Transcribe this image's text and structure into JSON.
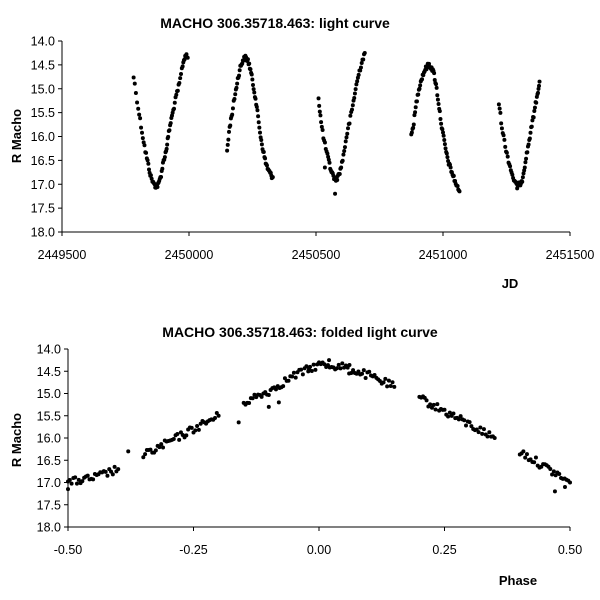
{
  "chart_data": [
    {
      "type": "scatter",
      "title": "MACHO 306.35718.463: light curve",
      "xlabel": "JD",
      "ylabel": "R Macho",
      "xlim": [
        2449500,
        2451500
      ],
      "ylim": [
        14.0,
        18.0
      ],
      "y_inverted": true,
      "grid": false,
      "legend": "none",
      "xticks": [
        "2449500",
        "2450000",
        "2450500",
        "2451000",
        "2451500"
      ],
      "yticks": [
        "14.0",
        "14.5",
        "15.0",
        "15.5",
        "16.0",
        "16.5",
        "17.0",
        "17.5",
        "18.0"
      ],
      "xtick_values": [
        2449500,
        2450000,
        2450500,
        2451000,
        2451500
      ],
      "ytick_values": [
        14.0,
        14.5,
        15.0,
        15.5,
        16.0,
        16.5,
        17.0,
        17.5,
        18.0
      ],
      "point_color": "#000000",
      "curve_points": [
        [
          2449782,
          14.75
        ],
        [
          2449800,
          15.4
        ],
        [
          2449815,
          15.9
        ],
        [
          2449828,
          16.3
        ],
        [
          2449840,
          16.6
        ],
        [
          2449850,
          16.85
        ],
        [
          2449862,
          17.0
        ],
        [
          2449872,
          17.05
        ],
        [
          2449880,
          17.0
        ],
        [
          2449890,
          16.8
        ],
        [
          2449900,
          16.5
        ],
        [
          2449910,
          16.3
        ],
        [
          2449918,
          16.0
        ],
        [
          2449928,
          15.7
        ],
        [
          2449938,
          15.45
        ],
        [
          2449950,
          15.15
        ],
        [
          2449962,
          14.9
        ],
        [
          2449975,
          14.5
        ],
        [
          2449985,
          14.3
        ],
        [
          2449995,
          14.35
        ],
        [
          2450150,
          16.3
        ],
        [
          2450160,
          15.8
        ],
        [
          2450170,
          15.5
        ],
        [
          2450182,
          15.1
        ],
        [
          2450192,
          14.8
        ],
        [
          2450202,
          14.55
        ],
        [
          2450212,
          14.4
        ],
        [
          2450222,
          14.35
        ],
        [
          2450232,
          14.4
        ],
        [
          2450242,
          14.6
        ],
        [
          2450252,
          14.9
        ],
        [
          2450262,
          15.2
        ],
        [
          2450272,
          15.6
        ],
        [
          2450282,
          16.0
        ],
        [
          2450292,
          16.3
        ],
        [
          2450302,
          16.55
        ],
        [
          2450312,
          16.7
        ],
        [
          2450322,
          16.8
        ],
        [
          2450330,
          16.85
        ],
        [
          2450510,
          15.2
        ],
        [
          2450520,
          15.7
        ],
        [
          2450532,
          16.1
        ],
        [
          2450545,
          16.4
        ],
        [
          2450556,
          16.65
        ],
        [
          2450566,
          16.8
        ],
        [
          2450576,
          16.9
        ],
        [
          2450586,
          16.85
        ],
        [
          2450596,
          16.7
        ],
        [
          2450608,
          16.4
        ],
        [
          2450620,
          16.0
        ],
        [
          2450632,
          15.7
        ],
        [
          2450645,
          15.35
        ],
        [
          2450656,
          15.0
        ],
        [
          2450668,
          14.7
        ],
        [
          2450680,
          14.45
        ],
        [
          2450692,
          14.25
        ],
        [
          2450875,
          16.0
        ],
        [
          2450885,
          15.7
        ],
        [
          2450895,
          15.3
        ],
        [
          2450905,
          15.0
        ],
        [
          2450915,
          14.8
        ],
        [
          2450925,
          14.65
        ],
        [
          2450935,
          14.55
        ],
        [
          2450945,
          14.5
        ],
        [
          2450955,
          14.55
        ],
        [
          2450965,
          14.7
        ],
        [
          2450975,
          15.0
        ],
        [
          2450985,
          15.4
        ],
        [
          2450995,
          15.8
        ],
        [
          2451005,
          16.1
        ],
        [
          2451015,
          16.4
        ],
        [
          2451025,
          16.6
        ],
        [
          2451035,
          16.75
        ],
        [
          2451045,
          16.9
        ],
        [
          2451055,
          17.05
        ],
        [
          2451065,
          17.15
        ],
        [
          2451220,
          15.3
        ],
        [
          2451232,
          15.8
        ],
        [
          2451245,
          16.2
        ],
        [
          2451258,
          16.5
        ],
        [
          2451270,
          16.75
        ],
        [
          2451282,
          16.95
        ],
        [
          2451292,
          17.05
        ],
        [
          2451302,
          17.0
        ],
        [
          2451312,
          16.9
        ],
        [
          2451322,
          16.6
        ],
        [
          2451332,
          16.3
        ],
        [
          2451342,
          16.0
        ],
        [
          2451352,
          15.7
        ],
        [
          2451362,
          15.4
        ],
        [
          2451372,
          15.1
        ],
        [
          2451380,
          14.85
        ]
      ],
      "outliers": [
        [
          2450575,
          17.2
        ],
        [
          2450535,
          16.65
        ],
        [
          2451305,
          17.0
        ]
      ]
    },
    {
      "type": "scatter",
      "title": "MACHO 306.35718.463: folded light curve",
      "xlabel": "Phase",
      "ylabel": "R Macho",
      "xlim": [
        -0.5,
        0.5
      ],
      "ylim": [
        14.0,
        18.0
      ],
      "y_inverted": true,
      "grid": false,
      "legend": "none",
      "xticks": [
        "-0.50",
        "-0.25",
        "0.00",
        "0.25",
        "0.50"
      ],
      "yticks": [
        "14.0",
        "14.5",
        "15.0",
        "15.5",
        "16.0",
        "16.5",
        "17.0",
        "17.5",
        "18.0"
      ],
      "xtick_values": [
        -0.5,
        -0.25,
        0.0,
        0.25,
        0.5
      ],
      "ytick_values": [
        14.0,
        14.5,
        15.0,
        15.5,
        16.0,
        16.5,
        17.0,
        17.5,
        18.0
      ],
      "point_color": "#000000",
      "curve_points": [
        [
          -0.5,
          17.0
        ],
        [
          -0.45,
          16.9
        ],
        [
          -0.4,
          16.7
        ],
        [
          -0.35,
          16.4
        ],
        [
          -0.3,
          16.1
        ],
        [
          -0.25,
          15.8
        ],
        [
          -0.2,
          15.5
        ],
        [
          -0.15,
          15.2
        ],
        [
          -0.1,
          14.95
        ],
        [
          -0.05,
          14.6
        ],
        [
          0.0,
          14.35
        ],
        [
          0.05,
          14.4
        ],
        [
          0.1,
          14.6
        ],
        [
          0.15,
          14.85
        ],
        [
          0.2,
          15.1
        ],
        [
          0.25,
          15.4
        ],
        [
          0.3,
          15.7
        ],
        [
          0.35,
          16.0
        ],
        [
          0.4,
          16.3
        ],
        [
          0.45,
          16.65
        ],
        [
          0.5,
          17.0
        ]
      ],
      "outliers": [
        [
          -0.5,
          17.15
        ],
        [
          -0.38,
          16.3
        ],
        [
          -0.16,
          15.65
        ],
        [
          -0.1,
          15.3
        ],
        [
          -0.08,
          15.2
        ],
        [
          -0.02,
          14.45
        ],
        [
          0.02,
          14.25
        ],
        [
          0.06,
          14.55
        ],
        [
          0.47,
          17.2
        ],
        [
          0.49,
          17.1
        ]
      ]
    }
  ]
}
